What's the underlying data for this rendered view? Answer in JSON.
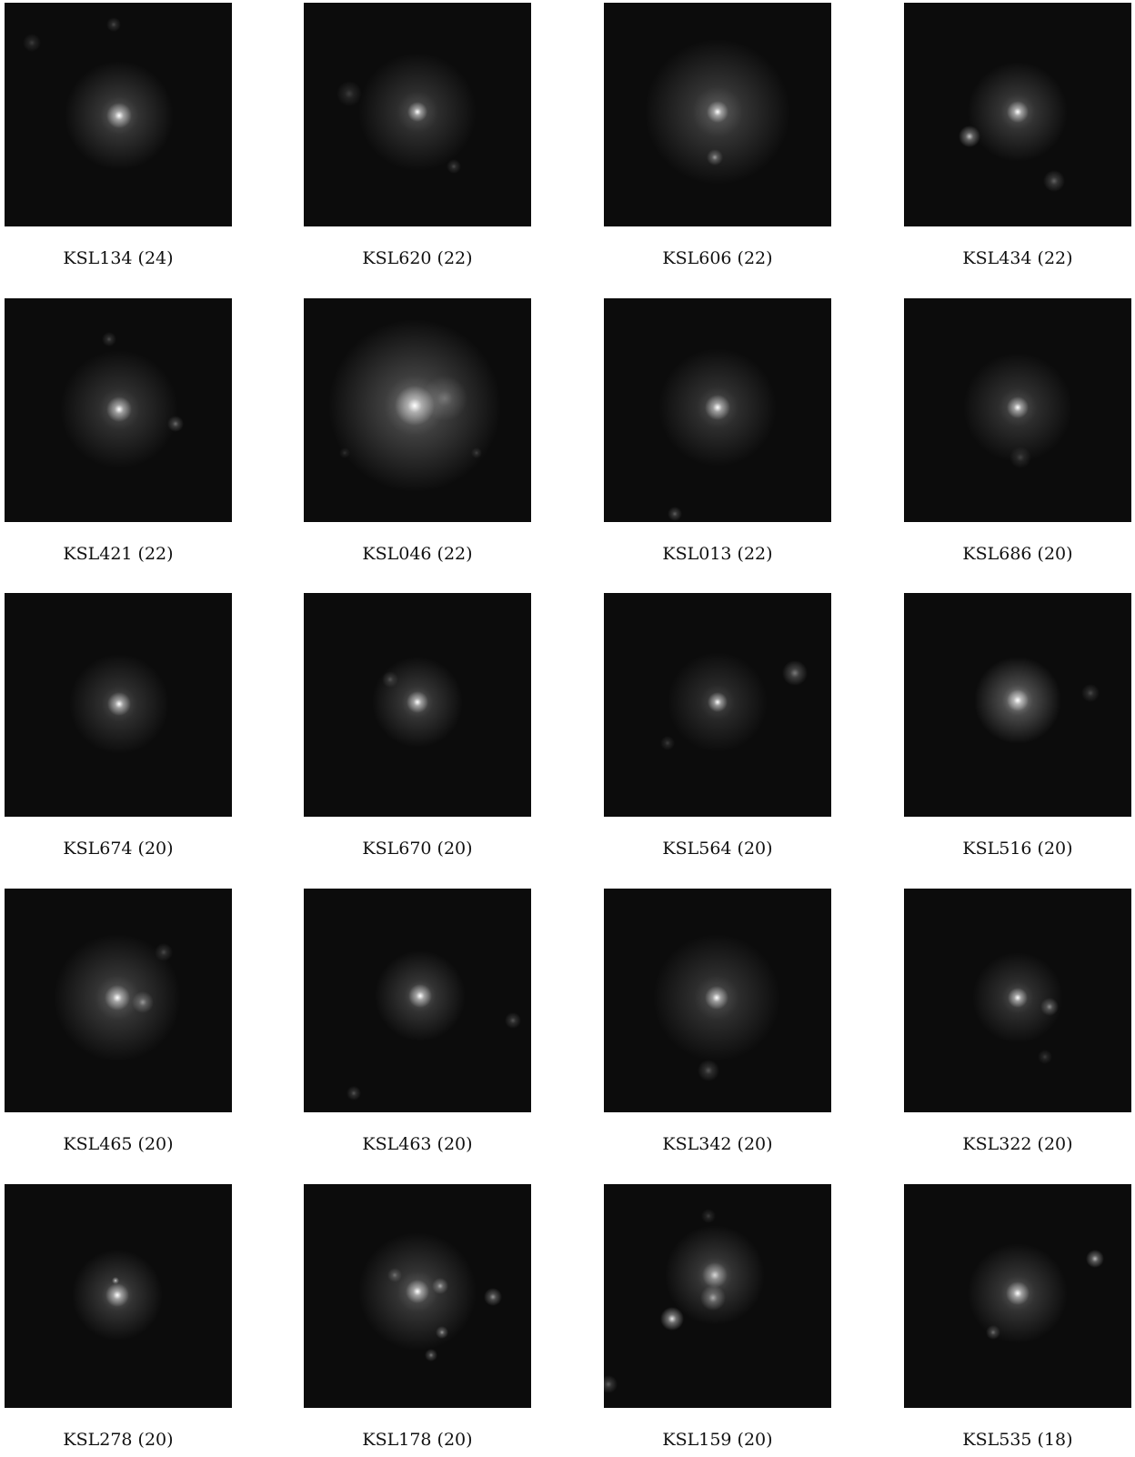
{
  "figure": {
    "panels": [
      {
        "id": "KSL134",
        "score": "24",
        "caption": "KSL134 (24)"
      },
      {
        "id": "KSL620",
        "score": "22",
        "caption": "KSL620 (22)"
      },
      {
        "id": "KSL606",
        "score": "22",
        "caption": "KSL606 (22)"
      },
      {
        "id": "KSL434",
        "score": "22",
        "caption": "KSL434 (22)"
      },
      {
        "id": "KSL421",
        "score": "22",
        "caption": "KSL421 (22)"
      },
      {
        "id": "KSL046",
        "score": "22",
        "caption": "KSL046 (22)"
      },
      {
        "id": "KSL013",
        "score": "22",
        "caption": "KSL013 (22)"
      },
      {
        "id": "KSL686",
        "score": "20",
        "caption": "KSL686 (20)"
      },
      {
        "id": "KSL674",
        "score": "20",
        "caption": "KSL674 (20)"
      },
      {
        "id": "KSL670",
        "score": "20",
        "caption": "KSL670 (20)"
      },
      {
        "id": "KSL564",
        "score": "20",
        "caption": "KSL564 (20)"
      },
      {
        "id": "KSL516",
        "score": "20",
        "caption": "KSL516 (20)"
      },
      {
        "id": "KSL465",
        "score": "20",
        "caption": "KSL465 (20)"
      },
      {
        "id": "KSL463",
        "score": "20",
        "caption": "KSL463 (20)"
      },
      {
        "id": "KSL342",
        "score": "20",
        "caption": "KSL342 (20)"
      },
      {
        "id": "KSL322",
        "score": "20",
        "caption": "KSL322 (20)"
      },
      {
        "id": "KSL278",
        "score": "20",
        "caption": "KSL278 (20)"
      },
      {
        "id": "KSL178",
        "score": "20",
        "caption": "KSL178 (20)"
      },
      {
        "id": "KSL159",
        "score": "20",
        "caption": "KSL159 (20)"
      },
      {
        "id": "KSL535",
        "score": "18",
        "caption": "KSL535 (18)"
      }
    ]
  }
}
